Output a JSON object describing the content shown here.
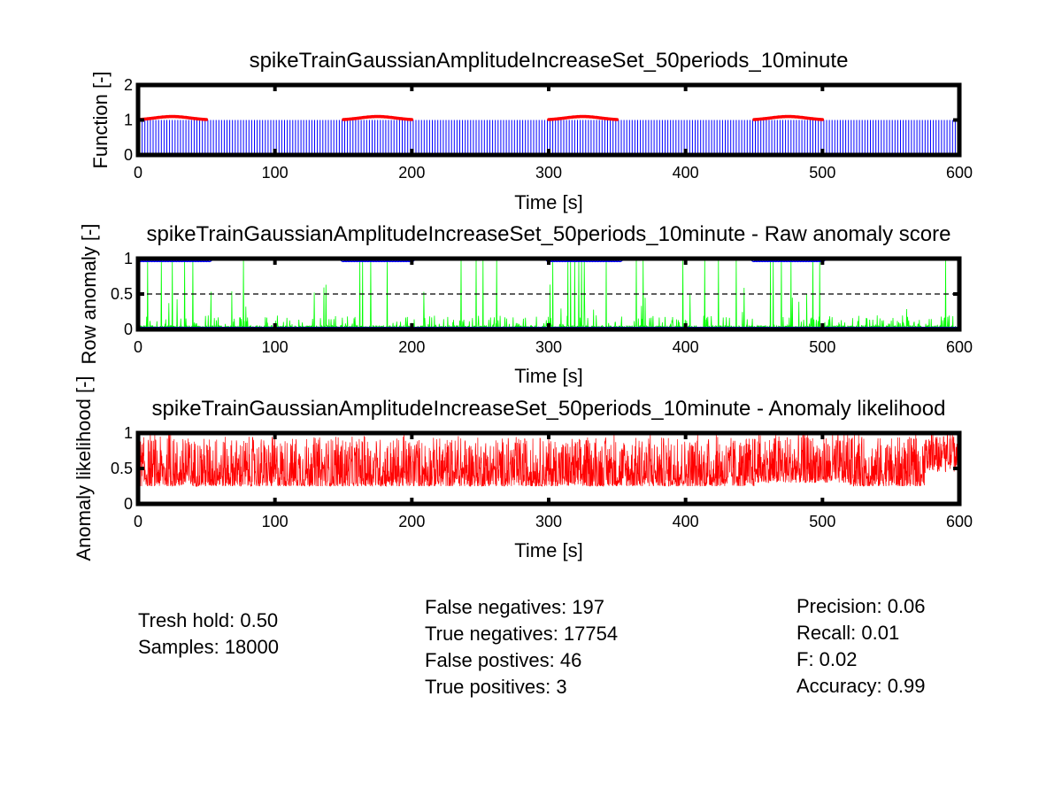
{
  "chart_data": [
    {
      "type": "line",
      "title": "spikeTrainGaussianAmplitudeIncreaseSet_50periods_10minute",
      "xlabel": "Time [s]",
      "ylabel": "Function [-]",
      "xlim": [
        0,
        600
      ],
      "ylim": [
        0,
        2
      ],
      "xticks": [
        "0",
        "100",
        "200",
        "300",
        "400",
        "500",
        "600"
      ],
      "yticks": [
        "0",
        "1",
        "2"
      ],
      "series": [
        {
          "kind": "spike-train",
          "color": "#0000ff",
          "period": 2,
          "height": 1,
          "x_range": [
            0,
            600
          ]
        },
        {
          "kind": "gaussian-markers",
          "color": "#ff0000",
          "segments": [
            [
              0,
              50
            ],
            [
              150,
              200
            ],
            [
              300,
              350
            ],
            [
              450,
              500
            ]
          ],
          "base": 1,
          "peak": 1.1
        }
      ]
    },
    {
      "type": "line",
      "title": "spikeTrainGaussianAmplitudeIncreaseSet_50periods_10minute - Raw anomaly score",
      "xlabel": "Time [s]",
      "ylabel": "Row anomaly [-]",
      "xlim": [
        0,
        600
      ],
      "ylim": [
        0,
        1
      ],
      "xticks": [
        "0",
        "100",
        "200",
        "300",
        "400",
        "500",
        "600"
      ],
      "yticks": [
        "0",
        "0.5",
        "1"
      ],
      "threshold": 0.5,
      "series": [
        {
          "kind": "raw-score",
          "color": "#00ff00",
          "spikes_at_1": [
            7,
            17,
            25,
            34,
            40,
            77,
            162,
            164,
            170,
            182,
            236,
            247,
            252,
            262,
            303,
            314,
            316,
            319,
            322,
            324,
            326,
            342,
            364,
            369,
            398,
            414,
            424,
            437,
            462,
            464,
            470,
            477,
            493,
            498,
            590
          ]
        },
        {
          "kind": "labels",
          "color": "#0000ff",
          "anomaly_windows": [
            [
              0,
              52
            ],
            [
              150,
              200
            ],
            [
              300,
              352
            ],
            [
              450,
              500
            ]
          ]
        }
      ]
    },
    {
      "type": "line",
      "title": "spikeTrainGaussianAmplitudeIncreaseSet_50periods_10minute - Anomaly likelihood",
      "xlabel": "Time [s]",
      "ylabel": "Anomaly likelihood [-]",
      "xlim": [
        0,
        600
      ],
      "ylim": [
        0,
        1
      ],
      "xticks": [
        "0",
        "100",
        "200",
        "300",
        "400",
        "500",
        "600"
      ],
      "yticks": [
        "0",
        "0.5",
        "1"
      ],
      "series": [
        {
          "kind": "likelihood",
          "color": "#ff0000"
        }
      ]
    }
  ],
  "stats": {
    "left": [
      "Tresh hold: 0.50",
      "Samples: 18000"
    ],
    "middle": [
      "False negatives: 197",
      "True negatives: 17754",
      "False postives: 46",
      "True positives: 3"
    ],
    "right": [
      "Precision: 0.06",
      "Recall: 0.01",
      "F: 0.02",
      "Accuracy: 0.99"
    ]
  }
}
